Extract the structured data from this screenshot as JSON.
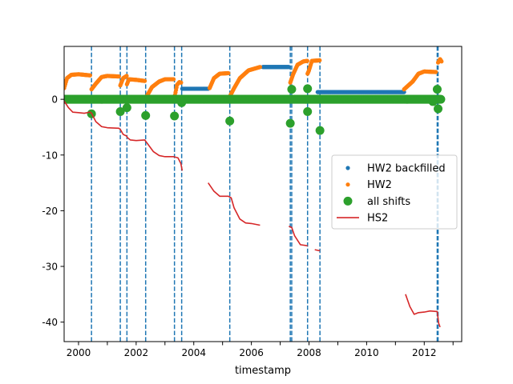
{
  "chart_data": {
    "type": "scatter",
    "title": "",
    "xlabel": "timestamp",
    "ylabel": "",
    "xlim": [
      1999.5,
      2013.3
    ],
    "ylim": [
      -43.5,
      9.5
    ],
    "x_ticks": [
      2000,
      2002,
      2004,
      2006,
      2008,
      2010,
      2012
    ],
    "y_ticks": [
      0,
      -10,
      -20,
      -30,
      -40
    ],
    "grid": false,
    "legend_position": "center-right",
    "legend": [
      "HW2 backfilled",
      "HW2",
      "all shifts",
      "HS2"
    ],
    "colors": {
      "hw2_backfilled": "#1f77b4",
      "hw2": "#ff7f0e",
      "all_shifts": "#2ca02c",
      "hs2": "#d62728",
      "shift_lines": "#1f77b4"
    },
    "shift_lines_x": [
      2000.45,
      2001.45,
      2001.68,
      2002.33,
      2003.33,
      2003.58,
      2005.25,
      2007.35,
      2007.4,
      2007.95,
      2008.38,
      2012.45,
      2012.48
    ],
    "series": [
      {
        "name": "HW2 backfilled",
        "style": "points",
        "segments": [
          [
            [
              2003.6,
              1.9
            ],
            [
              2004.5,
              1.9
            ]
          ],
          [
            [
              2006.4,
              5.8
            ],
            [
              2007.3,
              5.8
            ]
          ],
          [
            [
              2008.3,
              1.3
            ],
            [
              2011.3,
              1.3
            ]
          ]
        ]
      },
      {
        "name": "HW2",
        "style": "points",
        "segments": [
          [
            [
              1999.5,
              2.0
            ],
            [
              1999.6,
              3.8
            ],
            [
              1999.75,
              4.4
            ],
            [
              2000.0,
              4.5
            ],
            [
              2000.4,
              4.3
            ]
          ],
          [
            [
              2000.45,
              1.8
            ],
            [
              2000.6,
              2.8
            ],
            [
              2000.8,
              4.0
            ],
            [
              2001.0,
              4.2
            ],
            [
              2001.4,
              4.1
            ]
          ],
          [
            [
              2001.45,
              2.5
            ],
            [
              2001.55,
              3.8
            ],
            [
              2001.67,
              4.2
            ]
          ],
          [
            [
              2001.68,
              2.7
            ],
            [
              2001.75,
              3.6
            ],
            [
              2002.0,
              3.5
            ],
            [
              2002.3,
              3.3
            ]
          ],
          [
            [
              2002.33,
              0.2
            ],
            [
              2002.55,
              2.2
            ],
            [
              2002.8,
              3.2
            ],
            [
              2003.0,
              3.6
            ],
            [
              2003.3,
              3.6
            ]
          ],
          [
            [
              2003.33,
              0.3
            ],
            [
              2003.42,
              2.6
            ],
            [
              2003.5,
              3.1
            ],
            [
              2003.56,
              3.0
            ]
          ],
          [
            [
              2004.55,
              2.0
            ],
            [
              2004.7,
              3.8
            ],
            [
              2004.9,
              4.6
            ],
            [
              2005.2,
              4.7
            ]
          ],
          [
            [
              2005.25,
              0.5
            ],
            [
              2005.4,
              2.0
            ],
            [
              2005.6,
              3.8
            ],
            [
              2005.9,
              5.2
            ],
            [
              2006.3,
              5.8
            ]
          ],
          [
            [
              2007.35,
              3.0
            ],
            [
              2007.45,
              4.5
            ],
            [
              2007.6,
              6.2
            ],
            [
              2007.8,
              6.8
            ],
            [
              2007.94,
              6.9
            ]
          ],
          [
            [
              2007.95,
              4.6
            ],
            [
              2008.0,
              5.2
            ],
            [
              2008.1,
              6.9
            ],
            [
              2008.37,
              7.0
            ]
          ],
          [
            [
              2011.3,
              1.8
            ],
            [
              2011.6,
              3.2
            ],
            [
              2011.8,
              4.6
            ],
            [
              2012.0,
              5.0
            ],
            [
              2012.4,
              4.9
            ]
          ],
          [
            [
              2012.48,
              6.6
            ],
            [
              2012.55,
              7.2
            ],
            [
              2012.6,
              6.8
            ]
          ]
        ]
      },
      {
        "name": "all shifts",
        "style": "large-points",
        "baseline": {
          "from": 1999.5,
          "to": 2012.6,
          "value": 0
        },
        "points": [
          [
            2000.45,
            -2.6
          ],
          [
            2001.45,
            -2.2
          ],
          [
            2001.68,
            -1.5
          ],
          [
            2002.33,
            -2.9
          ],
          [
            2003.33,
            -3.0
          ],
          [
            2003.58,
            -0.6
          ],
          [
            2005.25,
            -3.9
          ],
          [
            2007.35,
            -4.3
          ],
          [
            2007.4,
            1.8
          ],
          [
            2007.95,
            -2.2
          ],
          [
            2007.95,
            1.9
          ],
          [
            2008.38,
            -5.6
          ],
          [
            2012.45,
            1.8
          ],
          [
            2012.48,
            -1.7
          ],
          [
            2012.3,
            -0.4
          ]
        ]
      },
      {
        "name": "HS2",
        "style": "line",
        "segments": [
          [
            [
              1999.5,
              -0.3
            ],
            [
              1999.65,
              -1.5
            ],
            [
              1999.8,
              -2.3
            ],
            [
              2000.0,
              -2.4
            ],
            [
              2000.2,
              -2.5
            ],
            [
              2000.4,
              -2.3
            ],
            [
              2000.45,
              -2.5
            ],
            [
              2000.6,
              -4.0
            ],
            [
              2000.8,
              -4.9
            ],
            [
              2001.0,
              -5.1
            ],
            [
              2001.4,
              -5.2
            ],
            [
              2001.45,
              -5.4
            ],
            [
              2001.55,
              -6.3
            ],
            [
              2001.67,
              -6.6
            ],
            [
              2001.7,
              -6.9
            ],
            [
              2001.8,
              -7.3
            ],
            [
              2002.0,
              -7.4
            ],
            [
              2002.3,
              -7.3
            ],
            [
              2002.4,
              -8.0
            ],
            [
              2002.6,
              -9.4
            ],
            [
              2002.8,
              -10.1
            ],
            [
              2003.0,
              -10.3
            ],
            [
              2003.3,
              -10.3
            ],
            [
              2003.45,
              -10.5
            ],
            [
              2003.55,
              -11.5
            ],
            [
              2003.6,
              -12.8
            ]
          ],
          [
            [
              2004.5,
              -15.0
            ],
            [
              2004.7,
              -16.5
            ],
            [
              2004.9,
              -17.4
            ],
            [
              2005.2,
              -17.4
            ],
            [
              2005.3,
              -17.7
            ],
            [
              2005.4,
              -19.5
            ],
            [
              2005.6,
              -21.5
            ],
            [
              2005.8,
              -22.2
            ],
            [
              2006.0,
              -22.3
            ],
            [
              2006.3,
              -22.6
            ]
          ],
          [
            [
              2007.3,
              -22.8
            ],
            [
              2007.4,
              -23.0
            ],
            [
              2007.5,
              -24.5
            ],
            [
              2007.7,
              -26.1
            ],
            [
              2007.95,
              -26.3
            ]
          ],
          [
            [
              2008.2,
              -27.0
            ],
            [
              2008.38,
              -27.2
            ]
          ],
          [
            [
              2011.35,
              -35.0
            ],
            [
              2011.5,
              -37.2
            ],
            [
              2011.65,
              -38.6
            ],
            [
              2011.8,
              -38.3
            ],
            [
              2012.0,
              -38.2
            ],
            [
              2012.2,
              -38.0
            ],
            [
              2012.45,
              -38.1
            ],
            [
              2012.5,
              -40.2
            ],
            [
              2012.55,
              -40.9
            ]
          ]
        ]
      }
    ]
  }
}
